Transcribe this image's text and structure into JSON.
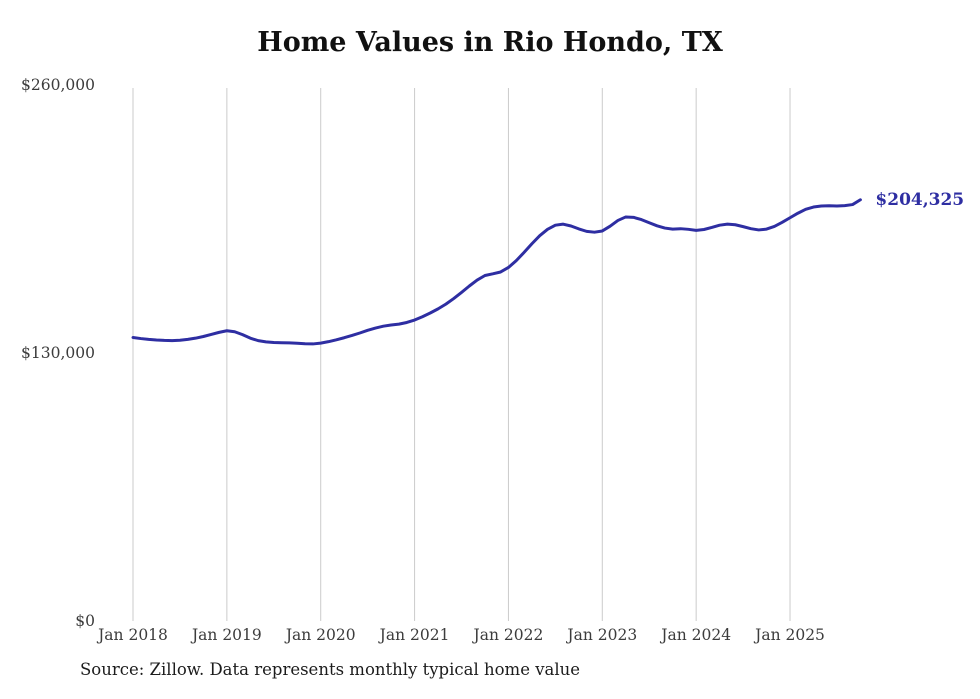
{
  "source_note": "Source: Zillow. Data represents monthly typical home value",
  "chart_data": {
    "type": "line",
    "title": "Home Values in Rio Hondo, TX",
    "xlabel": "",
    "ylabel": "",
    "ylim": [
      0,
      260000
    ],
    "grid": "vertical-only",
    "legend": "none",
    "line_color": "#2e2ea2",
    "grid_color": "#cbcbcb",
    "axis_text_color": "#3c3c3c",
    "y_ticks": [
      {
        "value": 0,
        "label": "$0"
      },
      {
        "value": 130000,
        "label": "$130,000"
      },
      {
        "value": 260000,
        "label": "$260,000"
      }
    ],
    "x_ticks": [
      {
        "month_index": 0,
        "label": "Jan 2018"
      },
      {
        "month_index": 12,
        "label": "Jan 2019"
      },
      {
        "month_index": 24,
        "label": "Jan 2020"
      },
      {
        "month_index": 36,
        "label": "Jan 2021"
      },
      {
        "month_index": 48,
        "label": "Jan 2022"
      },
      {
        "month_index": 60,
        "label": "Jan 2023"
      },
      {
        "month_index": 72,
        "label": "Jan 2024"
      },
      {
        "month_index": 84,
        "label": "Jan 2025"
      }
    ],
    "annotation": {
      "text": "$204,325",
      "position": "line-end"
    },
    "series": [
      {
        "name": "Typical home value",
        "start": "Jan 2018",
        "frequency": "monthly",
        "values": [
          137500,
          137000,
          136600,
          136300,
          136100,
          136000,
          136200,
          136600,
          137200,
          138000,
          139000,
          140000,
          140800,
          140300,
          138900,
          137200,
          136000,
          135400,
          135100,
          135000,
          134900,
          134700,
          134500,
          134400,
          134800,
          135500,
          136400,
          137400,
          138500,
          139700,
          141000,
          142100,
          143000,
          143600,
          144000,
          144800,
          146000,
          147600,
          149400,
          151400,
          153700,
          156400,
          159400,
          162500,
          165400,
          167600,
          168400,
          169300,
          171500,
          174800,
          178800,
          183000,
          186900,
          190000,
          192000,
          192500,
          191600,
          190200,
          189000,
          188600,
          189200,
          191500,
          194300,
          196000,
          195800,
          194700,
          193200,
          191700,
          190600,
          190100,
          190300,
          190000,
          189500,
          189900,
          190900,
          192000,
          192500,
          192200,
          191300,
          190300,
          189700,
          190100,
          191400,
          193400,
          195600,
          197800,
          199700,
          200800,
          201300,
          201400,
          201300,
          201500,
          202000,
          204325
        ]
      }
    ]
  }
}
